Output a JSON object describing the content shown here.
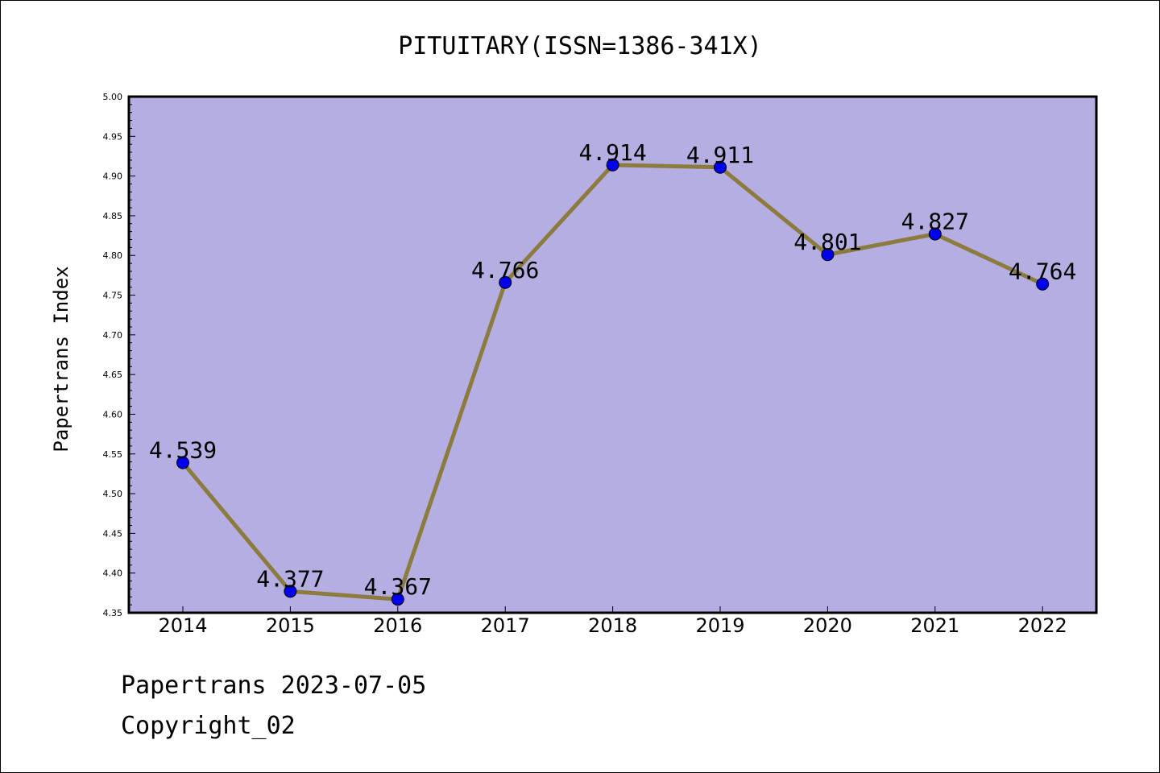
{
  "chart_data": {
    "type": "line",
    "title": "PITUITARY(ISSN=1386-341X)",
    "xlabel": "",
    "ylabel": "Papertrans Index",
    "categories": [
      "2014",
      "2015",
      "2016",
      "2017",
      "2018",
      "2019",
      "2020",
      "2021",
      "2022"
    ],
    "series": [
      {
        "values": [
          4.539,
          4.377,
          4.367,
          4.766,
          4.914,
          4.911,
          4.801,
          4.827,
          4.764
        ],
        "data_labels": [
          "4.539",
          "4.377",
          "4.367",
          "4.766",
          "4.914",
          "4.911",
          "4.801",
          "4.827",
          "4.764"
        ]
      }
    ],
    "ylim": [
      4.35,
      5.0
    ],
    "yticks": [
      "4.35",
      "4.40",
      "4.45",
      "4.50",
      "4.55",
      "4.60",
      "4.65",
      "4.70",
      "4.75",
      "4.80",
      "4.85",
      "4.90",
      "4.95",
      "5.00"
    ],
    "grid": false,
    "legend": "none",
    "colors": {
      "plot_background": "#b5aee3",
      "line": "#8b7b3c",
      "marker": "#0000ee"
    }
  },
  "footer": {
    "line1": "Papertrans 2023-07-05",
    "line2": "Copyright_02"
  }
}
